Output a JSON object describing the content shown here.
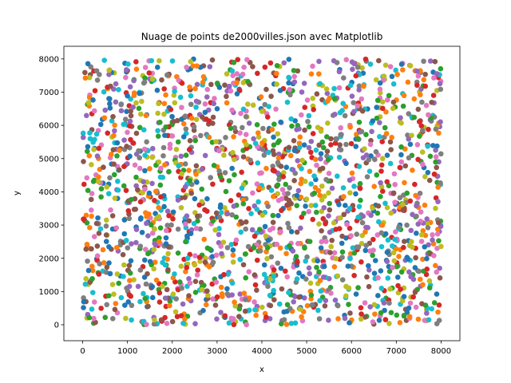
{
  "chart_data": {
    "type": "scatter",
    "title": "Nuage de points de2000villes.json avec Matplotlib",
    "xlabel": "x",
    "ylabel": "y",
    "xlim": [
      -420,
      8420
    ],
    "ylim": [
      -480,
      8380
    ],
    "xticks": [
      0,
      1000,
      2000,
      3000,
      4000,
      5000,
      6000,
      7000,
      8000
    ],
    "yticks": [
      0,
      1000,
      2000,
      3000,
      4000,
      5000,
      6000,
      7000,
      8000
    ],
    "xtick_labels": [
      "0",
      "1000",
      "2000",
      "3000",
      "4000",
      "5000",
      "6000",
      "7000",
      "8000"
    ],
    "ytick_labels": [
      "0",
      "1000",
      "2000",
      "3000",
      "4000",
      "5000",
      "6000",
      "7000",
      "8000"
    ],
    "grid": false,
    "legend": "none",
    "point_count": 2000,
    "x_range": [
      0,
      8000
    ],
    "y_range": [
      0,
      8000
    ],
    "distribution": "uniform",
    "color_cycle": [
      "#1f77b4",
      "#ff7f0e",
      "#2ca02c",
      "#d62728",
      "#9467bd",
      "#8c564b",
      "#e377c2",
      "#7f7f7f",
      "#bcbd22",
      "#17becf"
    ],
    "points_note_seed": 20240611
  }
}
